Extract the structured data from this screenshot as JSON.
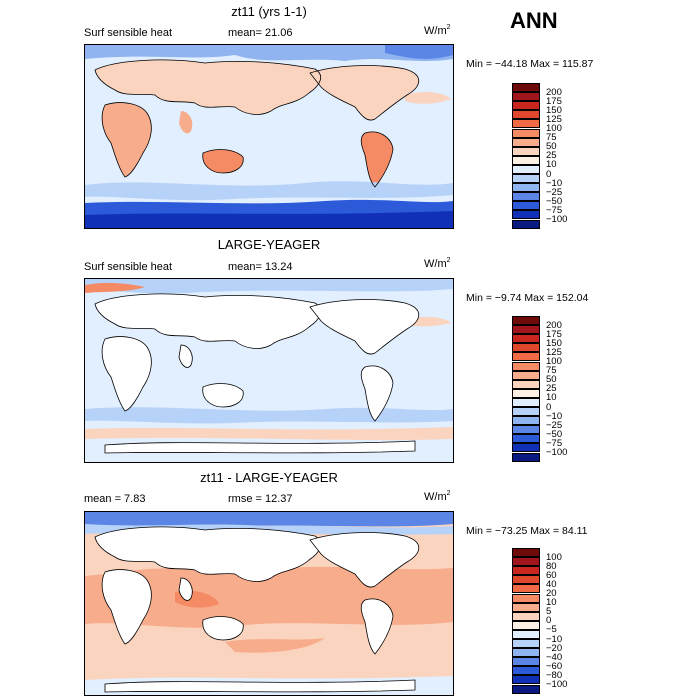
{
  "season": "ANN",
  "panels": [
    {
      "title": "zt11 (yrs 1-1)",
      "left_text_1": "Surf sensible heat",
      "left_text_2": "mean=   21.06",
      "units_base": "W/m",
      "units_exp": "2",
      "minmax": "Min = −44.18 Max = 115.87",
      "colorbar": {
        "labels": [
          "200",
          "175",
          "150",
          "125",
          "100",
          "75",
          "50",
          "25",
          "10",
          "0",
          "−10",
          "−25",
          "−50",
          "−75",
          "−100"
        ],
        "colors": [
          "#6e0a0a",
          "#a0161c",
          "#c8261f",
          "#e0482e",
          "#ef6a45",
          "#f48b65",
          "#f7ac8c",
          "#fbd4bf",
          "#fdf1e6",
          "#e1efff",
          "#b7d2f8",
          "#8fb4f0",
          "#5c86e6",
          "#2c5ad9",
          "#1030b8",
          "#0a1a80"
        ]
      }
    },
    {
      "title": "LARGE-YEAGER",
      "left_text_1": "Surf sensible heat",
      "left_text_2": "mean=   13.24",
      "units_base": "W/m",
      "units_exp": "2",
      "minmax": "Min =  −9.74 Max = 152.04",
      "colorbar": {
        "labels": [
          "200",
          "175",
          "150",
          "125",
          "100",
          "75",
          "50",
          "25",
          "10",
          "0",
          "−10",
          "−25",
          "−50",
          "−75",
          "−100"
        ],
        "colors": [
          "#6e0a0a",
          "#a0161c",
          "#c8261f",
          "#e0482e",
          "#ef6a45",
          "#f48b65",
          "#f7ac8c",
          "#fbd4bf",
          "#fdf1e6",
          "#e1efff",
          "#b7d2f8",
          "#8fb4f0",
          "#5c86e6",
          "#2c5ad9",
          "#1030b8",
          "#0a1a80"
        ]
      }
    },
    {
      "title": "zt11 - LARGE-YEAGER",
      "left_text_1": "mean =    7.83",
      "left_text_2": "rmse =   12.37",
      "units_base": "W/m",
      "units_exp": "2",
      "minmax": "Min = −73.25 Max =  84.11",
      "colorbar": {
        "labels": [
          "100",
          "80",
          "60",
          "40",
          "20",
          "10",
          "5",
          "0",
          "−5",
          "−10",
          "−20",
          "−40",
          "−60",
          "−80",
          "−100"
        ],
        "colors": [
          "#6e0a0a",
          "#a0161c",
          "#c8261f",
          "#e0482e",
          "#ef6a45",
          "#f48b65",
          "#f7ac8c",
          "#fbd4bf",
          "#fdf1e6",
          "#e1efff",
          "#b7d2f8",
          "#8fb4f0",
          "#5c86e6",
          "#2c5ad9",
          "#1030b8",
          "#0a1a80"
        ]
      }
    }
  ]
}
